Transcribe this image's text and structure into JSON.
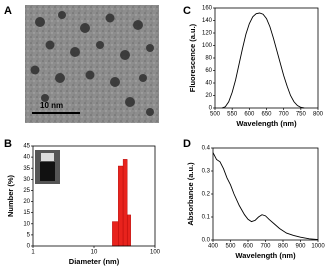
{
  "image": {
    "panel_label": "A",
    "scale_bar": "10 nm"
  },
  "chart_data": [
    {
      "type": "histogram",
      "panel_label": "B",
      "x_label": "Diameter (nm)",
      "y_label": "Number (%)",
      "bins": [
        20,
        25,
        30,
        35,
        40
      ],
      "values": [
        11,
        36,
        39,
        14
      ],
      "color": "#e8231d",
      "xscale": "log",
      "xlim": [
        1,
        100
      ],
      "xticks": [
        1,
        10,
        100
      ],
      "ylim": [
        0,
        45
      ],
      "yticks": [
        0,
        5,
        10,
        15,
        20,
        25,
        30,
        35,
        40,
        45
      ]
    },
    {
      "type": "line",
      "panel_label": "C",
      "x_label": "Wavelength  (nm)",
      "y_label": "Fluorescence (a.u.)",
      "x": [
        520,
        530,
        540,
        550,
        560,
        570,
        580,
        590,
        600,
        610,
        620,
        630,
        640,
        650,
        660,
        670,
        680,
        690,
        700,
        710,
        720,
        730,
        740,
        750,
        760
      ],
      "values": [
        0,
        2,
        10,
        25,
        45,
        70,
        95,
        118,
        135,
        146,
        151,
        152,
        150,
        143,
        130,
        112,
        92,
        72,
        52,
        35,
        20,
        10,
        4,
        1,
        0
      ],
      "color": "#000000",
      "xlim": [
        500,
        800
      ],
      "xticks": [
        500,
        550,
        600,
        650,
        700,
        750,
        800
      ],
      "ylim": [
        0,
        160
      ],
      "yticks": [
        0,
        20,
        40,
        60,
        80,
        100,
        120,
        140,
        160
      ]
    },
    {
      "type": "line",
      "panel_label": "D",
      "x_label": "Wavelength  (nm)",
      "y_label": "Absorbance (a.u.)",
      "x": [
        400,
        420,
        440,
        460,
        480,
        500,
        520,
        550,
        580,
        600,
        620,
        640,
        660,
        680,
        700,
        720,
        750,
        780,
        820,
        860,
        900,
        950,
        1000
      ],
      "values": [
        0.38,
        0.35,
        0.34,
        0.31,
        0.27,
        0.24,
        0.2,
        0.15,
        0.11,
        0.09,
        0.08,
        0.085,
        0.1,
        0.11,
        0.105,
        0.09,
        0.07,
        0.05,
        0.03,
        0.02,
        0.012,
        0.005,
        0.002
      ],
      "color": "#000000",
      "xlim": [
        400,
        1000
      ],
      "xticks": [
        400,
        500,
        600,
        700,
        800,
        900,
        1000
      ],
      "ylim": [
        0,
        0.4
      ],
      "yticks": [
        {
          "value": 0,
          "label": "0.0"
        },
        0.1,
        0.2,
        0.3,
        0.4
      ]
    }
  ]
}
